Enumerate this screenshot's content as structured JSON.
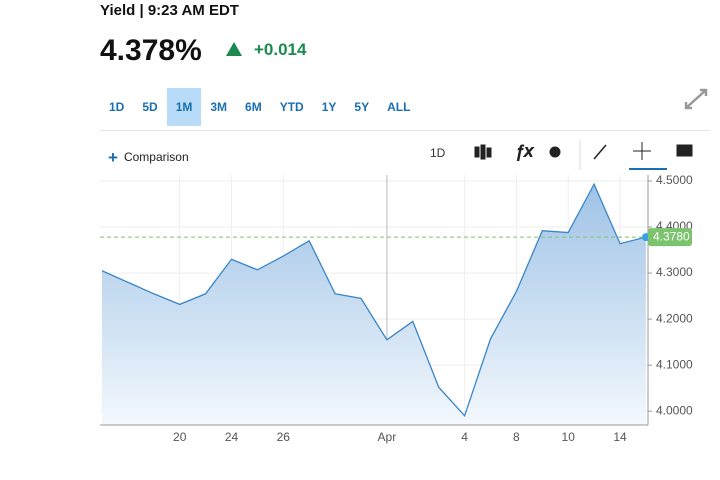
{
  "header": {
    "title": "Yield | 9:23 AM EDT",
    "price": "4.378%",
    "change": "+0.014"
  },
  "ranges": {
    "options": [
      "1D",
      "5D",
      "1M",
      "3M",
      "6M",
      "YTD",
      "1Y",
      "5Y",
      "ALL"
    ],
    "selected": "1M"
  },
  "toolbar": {
    "comparison": "Comparison",
    "interval": "1D"
  },
  "chart_data": {
    "type": "area",
    "color": "#3a86c8",
    "categories": [
      null,
      null,
      null,
      "20",
      null,
      "24",
      null,
      "26",
      null,
      null,
      null,
      "Apr",
      null,
      null,
      "4",
      null,
      "8",
      null,
      "10",
      null,
      "14",
      null
    ],
    "values": [
      4.305,
      4.28,
      4.255,
      4.232,
      4.255,
      4.33,
      4.307,
      4.337,
      4.37,
      4.255,
      4.245,
      4.155,
      4.195,
      4.052,
      3.99,
      4.157,
      4.26,
      4.392,
      4.388,
      4.493,
      4.364,
      4.378
    ],
    "ylim": [
      3.97,
      4.513
    ],
    "yticks": [
      {
        "value": 4.0,
        "label": "4.0000"
      },
      {
        "value": 4.1,
        "label": "4.1000"
      },
      {
        "value": 4.2,
        "label": "4.2000"
      },
      {
        "value": 4.3,
        "label": "4.3000"
      },
      {
        "value": 4.4,
        "label": "4.4000"
      },
      {
        "value": 4.5,
        "label": "4.5000"
      }
    ],
    "current": {
      "value": 4.378,
      "label": "4.3780",
      "color": "#7cc36e"
    },
    "grid": true
  }
}
